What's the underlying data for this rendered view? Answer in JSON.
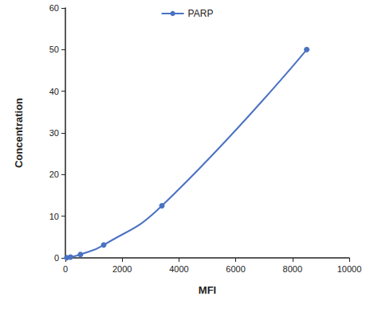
{
  "chart_data": {
    "type": "line",
    "x_label": "MFI",
    "y_label": "Concentration",
    "x": [
      50,
      180,
      530,
      1350,
      3400,
      8500
    ],
    "series": [
      {
        "name": "PARP",
        "color": "#4a72c2",
        "values": [
          0.05,
          0.2,
          0.8,
          3.1,
          12.5,
          50
        ],
        "marker": "circle",
        "line_style": "smooth"
      }
    ],
    "xlim": [
      0,
      10000
    ],
    "xticks": [
      0,
      2000,
      4000,
      6000,
      8000,
      10000
    ],
    "ylim": [
      0,
      60
    ],
    "yticks": [
      0,
      10,
      20,
      30,
      40,
      50,
      60
    ],
    "grid": false,
    "legend": "top"
  }
}
